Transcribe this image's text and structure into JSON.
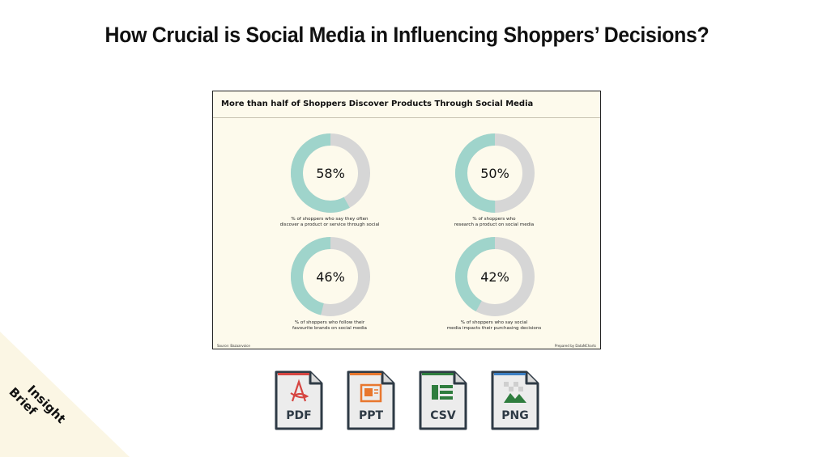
{
  "page": {
    "title": "How Crucial is Social Media in Influencing Shoppers’ Decisions?"
  },
  "chart_card": {
    "title": "More than half of Shoppers Discover Products Through Social Media",
    "source": "Source: Bazaarvoice",
    "prepared_by": "Prepared by DataNCharts"
  },
  "chart_data": [
    {
      "type": "pie",
      "donut": true,
      "value_label": "58%",
      "values": [
        58,
        42
      ],
      "caption_lines": [
        "% of shoppers who say they often",
        "discover a product or service through social"
      ]
    },
    {
      "type": "pie",
      "donut": true,
      "value_label": "50%",
      "values": [
        50,
        50
      ],
      "caption_lines": [
        "% of shoppers who",
        "research a product on social media"
      ]
    },
    {
      "type": "pie",
      "donut": true,
      "value_label": "46%",
      "values": [
        46,
        54
      ],
      "caption_lines": [
        "% of shoppers who follow their",
        "favourite brands on social media"
      ]
    },
    {
      "type": "pie",
      "donut": true,
      "value_label": "42%",
      "values": [
        42,
        58
      ],
      "caption_lines": [
        "% of shoppers who say social",
        "media impacts their purchasing decisions"
      ]
    }
  ],
  "colors": {
    "filled": "#9fd4cb",
    "remainder": "#d6d6d6",
    "card_bg": "#fdfaec",
    "corner_bg": "#fbf6e4"
  },
  "downloads": [
    {
      "label": "PDF",
      "icon": "pdf-acrobat-icon",
      "accent": "#d64541"
    },
    {
      "label": "PPT",
      "icon": "presentation-icon",
      "accent": "#e8772e"
    },
    {
      "label": "CSV",
      "icon": "spreadsheet-icon",
      "accent": "#2f7d3e"
    },
    {
      "label": "PNG",
      "icon": "image-icon",
      "accent": "#3c7fc4"
    }
  ],
  "badge": {
    "line1": "Insight",
    "line2": "Brief"
  }
}
